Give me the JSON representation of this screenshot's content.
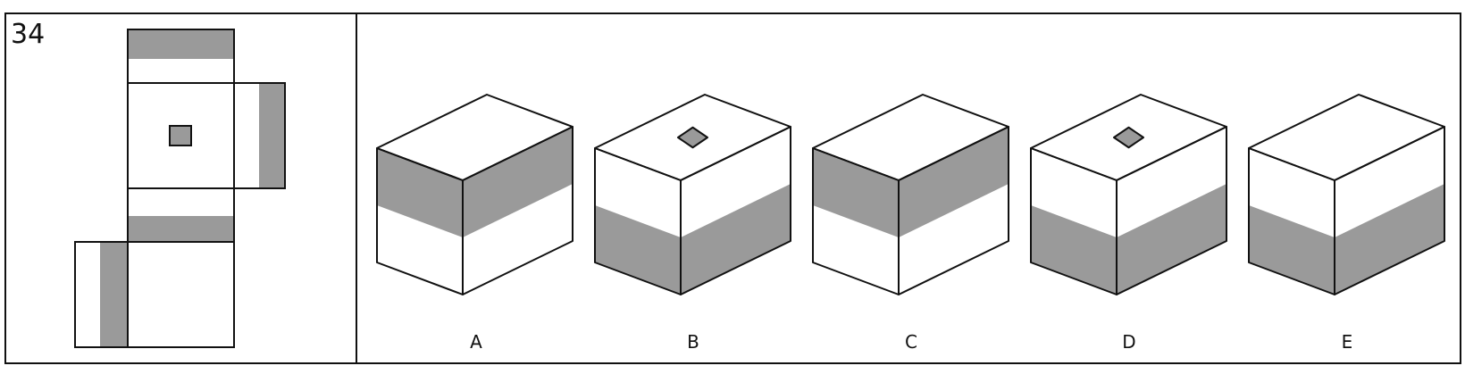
{
  "question": {
    "number": "34"
  },
  "colors": {
    "line": "#111111",
    "face": "#ffffff",
    "shade": "#9a9a9a"
  },
  "net": {
    "faces": [
      {
        "name": "net-face-top-flap",
        "shade": "upper-half-band"
      },
      {
        "name": "net-face-center",
        "shade": "center-small-square"
      },
      {
        "name": "net-face-right-flap",
        "shade": "right-half-band"
      },
      {
        "name": "net-face-lower",
        "shade": "lower-half-band"
      },
      {
        "name": "net-face-bottom",
        "shade": "none"
      },
      {
        "name": "net-face-left-flap",
        "shade": "right-half-band"
      }
    ]
  },
  "options": [
    {
      "label": "A",
      "top_square": false
    },
    {
      "label": "B",
      "top_square": true
    },
    {
      "label": "C",
      "top_square": false
    },
    {
      "label": "D",
      "top_square": true
    },
    {
      "label": "E",
      "top_square": false
    }
  ]
}
